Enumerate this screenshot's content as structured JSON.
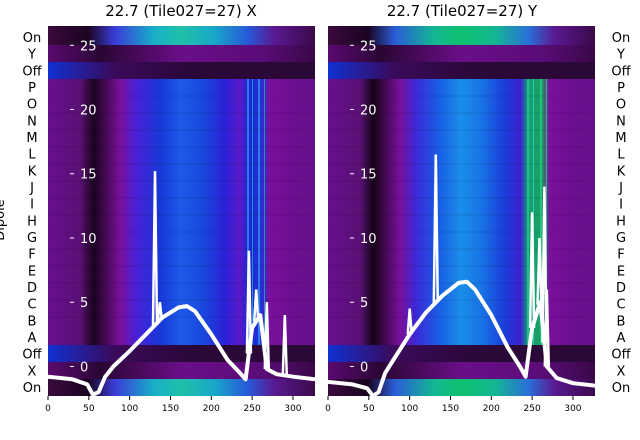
{
  "chart_data": [
    {
      "type": "heatmap",
      "title": "22.7 (Tile027=27) X",
      "ylabel": "Dipole",
      "row_labels": [
        "On",
        "Y",
        "Off",
        "P",
        "O",
        "N",
        "M",
        "L",
        "K",
        "J",
        "I",
        "H",
        "G",
        "F",
        "E",
        "D",
        "C",
        "B",
        "A",
        "Off",
        "X",
        "On"
      ],
      "x_ticks": [
        0,
        50,
        100,
        150,
        200,
        250,
        300
      ],
      "xlim": [
        0,
        327
      ],
      "overlay_yticks": [
        0,
        5,
        10,
        15,
        20,
        25
      ],
      "overlay_ylim": [
        -2.3,
        26.5
      ],
      "series": [
        {
          "x": [
            0,
            30,
            48,
            55,
            62,
            70,
            80,
            100,
            120,
            140,
            160,
            170,
            180,
            200,
            220,
            235,
            242,
            250,
            260,
            268,
            280,
            300,
            327
          ],
          "y": [
            -0.8,
            -1.0,
            -1.4,
            -2.2,
            -2.0,
            -0.8,
            0,
            1.2,
            2.5,
            3.8,
            4.6,
            4.7,
            4.3,
            2.5,
            0.5,
            -0.5,
            -1.0,
            3.0,
            4.0,
            -0.2,
            -0.6,
            -0.8,
            -1.0
          ]
        }
      ],
      "spikes": [
        {
          "x": 131,
          "y": 15.2
        },
        {
          "x": 137,
          "y": 5.0
        },
        {
          "x": 246,
          "y": 9.0
        },
        {
          "x": 255,
          "y": 6.0
        },
        {
          "x": 268,
          "y": 5.0
        },
        {
          "x": 290,
          "y": 4.0
        }
      ]
    },
    {
      "type": "heatmap",
      "title": "22.7 (Tile027=27) Y",
      "ylabel": "Dipole",
      "row_labels": [
        "On",
        "Y",
        "Off",
        "P",
        "O",
        "N",
        "M",
        "L",
        "K",
        "J",
        "I",
        "H",
        "G",
        "F",
        "E",
        "D",
        "C",
        "B",
        "A",
        "Off",
        "X",
        "On"
      ],
      "x_ticks": [
        0,
        50,
        100,
        150,
        200,
        250,
        300
      ],
      "xlim": [
        0,
        327
      ],
      "overlay_yticks": [
        0,
        5,
        10,
        15,
        20,
        25
      ],
      "overlay_ylim": [
        -2.3,
        26.5
      ],
      "series": [
        {
          "x": [
            0,
            30,
            48,
            55,
            62,
            70,
            80,
            100,
            120,
            140,
            160,
            170,
            180,
            200,
            220,
            235,
            242,
            250,
            260,
            268,
            280,
            300,
            327
          ],
          "y": [
            -1.2,
            -1.4,
            -1.7,
            -2.3,
            -2.0,
            -0.5,
            0.5,
            2.5,
            4.2,
            5.5,
            6.5,
            6.6,
            6.0,
            4.0,
            1.5,
            0.0,
            -0.8,
            3.0,
            5.0,
            0.0,
            -0.9,
            -1.3,
            -1.5
          ]
        }
      ],
      "spikes": [
        {
          "x": 132,
          "y": 16.5
        },
        {
          "x": 100,
          "y": 4.5
        },
        {
          "x": 250,
          "y": 12.0
        },
        {
          "x": 259,
          "y": 10.0
        },
        {
          "x": 265,
          "y": 14.0
        },
        {
          "x": 268,
          "y": 6.0
        }
      ]
    }
  ]
}
